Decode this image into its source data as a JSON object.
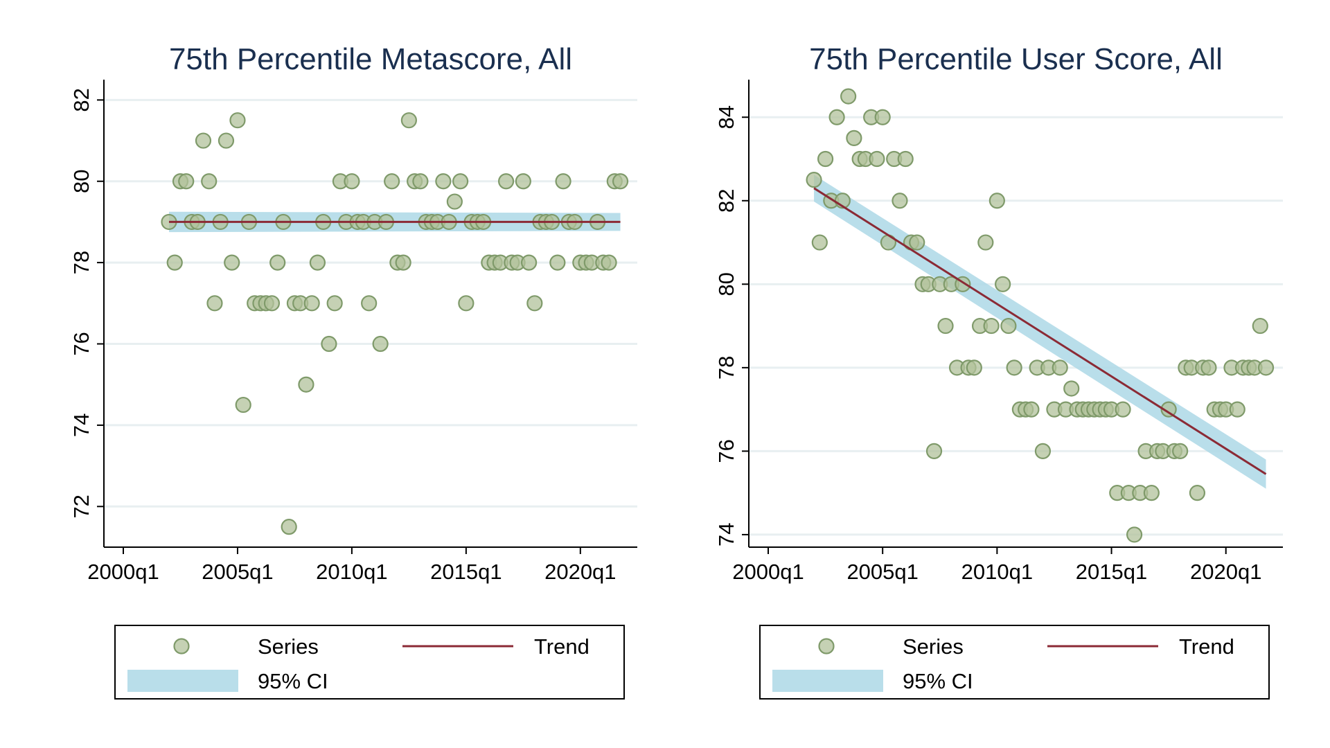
{
  "colors": {
    "marker_fill": "#b2c29b",
    "marker_stroke": "#7f9a6a",
    "trend": "#8b2a35",
    "ci_band": "#add8e6",
    "grid": "#e8eff1",
    "title": "#1a2f4f"
  },
  "chart_data": [
    {
      "type": "scatter",
      "title": "75th Percentile Metascore, All",
      "xlabel": "",
      "ylabel": "",
      "x_unit": "quarter",
      "xlim": [
        "2000q1",
        "2022q4"
      ],
      "ylim": [
        71,
        82.5
      ],
      "xticks": [
        {
          "x": 2000.0,
          "label": "2000q1"
        },
        {
          "x": 2005.0,
          "label": "2005q1"
        },
        {
          "x": 2010.0,
          "label": "2010q1"
        },
        {
          "x": 2015.0,
          "label": "2015q1"
        },
        {
          "x": 2020.0,
          "label": "2020q1"
        }
      ],
      "yticks": [
        72,
        74,
        76,
        78,
        80,
        82
      ],
      "grid": true,
      "legend_position": "bottom",
      "legend": {
        "series": "Series",
        "trend": "Trend",
        "ci": "95% CI"
      },
      "series": [
        {
          "name": "Series",
          "points": [
            [
              2002.0,
              79
            ],
            [
              2002.25,
              78
            ],
            [
              2002.5,
              80
            ],
            [
              2002.75,
              80
            ],
            [
              2003.0,
              79
            ],
            [
              2003.25,
              79
            ],
            [
              2003.5,
              81
            ],
            [
              2003.75,
              80
            ],
            [
              2004.0,
              77
            ],
            [
              2004.25,
              79
            ],
            [
              2004.5,
              81
            ],
            [
              2004.75,
              78
            ],
            [
              2005.0,
              81.5
            ],
            [
              2005.25,
              74.5
            ],
            [
              2005.5,
              79
            ],
            [
              2005.75,
              77
            ],
            [
              2006.0,
              77
            ],
            [
              2006.25,
              77
            ],
            [
              2006.5,
              77
            ],
            [
              2006.75,
              78
            ],
            [
              2007.0,
              79
            ],
            [
              2007.25,
              71.5
            ],
            [
              2007.5,
              77
            ],
            [
              2007.75,
              77
            ],
            [
              2008.0,
              75
            ],
            [
              2008.25,
              77
            ],
            [
              2008.5,
              78
            ],
            [
              2008.75,
              79
            ],
            [
              2009.0,
              76
            ],
            [
              2009.25,
              77
            ],
            [
              2009.5,
              80
            ],
            [
              2009.75,
              79
            ],
            [
              2010.0,
              80
            ],
            [
              2010.25,
              79
            ],
            [
              2010.5,
              79
            ],
            [
              2010.75,
              77
            ],
            [
              2011.0,
              79
            ],
            [
              2011.25,
              76
            ],
            [
              2011.5,
              79
            ],
            [
              2011.75,
              80
            ],
            [
              2012.0,
              78
            ],
            [
              2012.25,
              78
            ],
            [
              2012.5,
              81.5
            ],
            [
              2012.75,
              80
            ],
            [
              2013.0,
              80
            ],
            [
              2013.25,
              79
            ],
            [
              2013.5,
              79
            ],
            [
              2013.75,
              79
            ],
            [
              2014.0,
              80
            ],
            [
              2014.25,
              79
            ],
            [
              2014.5,
              79.5
            ],
            [
              2014.75,
              80
            ],
            [
              2015.0,
              77
            ],
            [
              2015.25,
              79
            ],
            [
              2015.5,
              79
            ],
            [
              2015.75,
              79
            ],
            [
              2016.0,
              78
            ],
            [
              2016.25,
              78
            ],
            [
              2016.5,
              78
            ],
            [
              2016.75,
              80
            ],
            [
              2017.0,
              78
            ],
            [
              2017.25,
              78
            ],
            [
              2017.5,
              80
            ],
            [
              2017.75,
              78
            ],
            [
              2018.0,
              77
            ],
            [
              2018.25,
              79
            ],
            [
              2018.5,
              79
            ],
            [
              2018.75,
              79
            ],
            [
              2019.0,
              78
            ],
            [
              2019.25,
              80
            ],
            [
              2019.5,
              79
            ],
            [
              2019.75,
              79
            ],
            [
              2020.0,
              78
            ],
            [
              2020.25,
              78
            ],
            [
              2020.5,
              78
            ],
            [
              2020.75,
              79
            ],
            [
              2021.0,
              78
            ],
            [
              2021.25,
              78
            ],
            [
              2021.5,
              80
            ],
            [
              2021.75,
              80
            ]
          ]
        }
      ],
      "trend": {
        "x": [
          2002.0,
          2021.75
        ],
        "y": [
          79.0,
          79.0
        ],
        "ci_halfwidth_start": 0.25,
        "ci_halfwidth_end": 0.22
      }
    },
    {
      "type": "scatter",
      "title": "75th Percentile User Score, All",
      "xlabel": "",
      "ylabel": "",
      "x_unit": "quarter",
      "xlim": [
        "2000q1",
        "2022q4"
      ],
      "ylim": [
        73.7,
        84.9
      ],
      "xticks": [
        {
          "x": 2000.0,
          "label": "2000q1"
        },
        {
          "x": 2005.0,
          "label": "2005q1"
        },
        {
          "x": 2010.0,
          "label": "2010q1"
        },
        {
          "x": 2015.0,
          "label": "2015q1"
        },
        {
          "x": 2020.0,
          "label": "2020q1"
        }
      ],
      "yticks": [
        74,
        76,
        78,
        80,
        82,
        84
      ],
      "grid": true,
      "legend_position": "bottom",
      "legend": {
        "series": "Series",
        "trend": "Trend",
        "ci": "95% CI"
      },
      "series": [
        {
          "name": "Series",
          "points": [
            [
              2002.0,
              82.5
            ],
            [
              2002.25,
              81
            ],
            [
              2002.5,
              83
            ],
            [
              2002.75,
              82
            ],
            [
              2003.0,
              84
            ],
            [
              2003.25,
              82
            ],
            [
              2003.5,
              84.5
            ],
            [
              2003.75,
              83.5
            ],
            [
              2004.0,
              83
            ],
            [
              2004.25,
              83
            ],
            [
              2004.5,
              84
            ],
            [
              2004.75,
              83
            ],
            [
              2005.0,
              84
            ],
            [
              2005.25,
              81
            ],
            [
              2005.5,
              83
            ],
            [
              2005.75,
              82
            ],
            [
              2006.0,
              83
            ],
            [
              2006.25,
              81
            ],
            [
              2006.5,
              81
            ],
            [
              2006.75,
              80
            ],
            [
              2007.0,
              80
            ],
            [
              2007.25,
              76
            ],
            [
              2007.5,
              80
            ],
            [
              2007.75,
              79
            ],
            [
              2008.0,
              80
            ],
            [
              2008.25,
              78
            ],
            [
              2008.5,
              80
            ],
            [
              2008.75,
              78
            ],
            [
              2009.0,
              78
            ],
            [
              2009.25,
              79
            ],
            [
              2009.5,
              81
            ],
            [
              2009.75,
              79
            ],
            [
              2010.0,
              82
            ],
            [
              2010.25,
              80
            ],
            [
              2010.5,
              79
            ],
            [
              2010.75,
              78
            ],
            [
              2011.0,
              77
            ],
            [
              2011.25,
              77
            ],
            [
              2011.5,
              77
            ],
            [
              2011.75,
              78
            ],
            [
              2012.0,
              76
            ],
            [
              2012.25,
              78
            ],
            [
              2012.5,
              77
            ],
            [
              2012.75,
              78
            ],
            [
              2013.0,
              77
            ],
            [
              2013.25,
              77.5
            ],
            [
              2013.5,
              77
            ],
            [
              2013.75,
              77
            ],
            [
              2014.0,
              77
            ],
            [
              2014.25,
              77
            ],
            [
              2014.5,
              77
            ],
            [
              2014.75,
              77
            ],
            [
              2015.0,
              77
            ],
            [
              2015.25,
              75
            ],
            [
              2015.5,
              77
            ],
            [
              2015.75,
              75
            ],
            [
              2016.0,
              74
            ],
            [
              2016.25,
              75
            ],
            [
              2016.5,
              76
            ],
            [
              2016.75,
              75
            ],
            [
              2017.0,
              76
            ],
            [
              2017.25,
              76
            ],
            [
              2017.5,
              77
            ],
            [
              2017.75,
              76
            ],
            [
              2018.0,
              76
            ],
            [
              2018.25,
              78
            ],
            [
              2018.5,
              78
            ],
            [
              2018.75,
              75
            ],
            [
              2019.0,
              78
            ],
            [
              2019.25,
              78
            ],
            [
              2019.5,
              77
            ],
            [
              2019.75,
              77
            ],
            [
              2020.0,
              77
            ],
            [
              2020.25,
              78
            ],
            [
              2020.5,
              77
            ],
            [
              2020.75,
              78
            ],
            [
              2021.0,
              78
            ],
            [
              2021.25,
              78
            ],
            [
              2021.5,
              79
            ],
            [
              2021.75,
              78
            ]
          ]
        }
      ],
      "trend": {
        "x": [
          2002.0,
          2021.75
        ],
        "y": [
          82.3,
          75.45
        ],
        "ci_halfwidth_start": 0.32,
        "ci_halfwidth_end": 0.35
      }
    }
  ]
}
